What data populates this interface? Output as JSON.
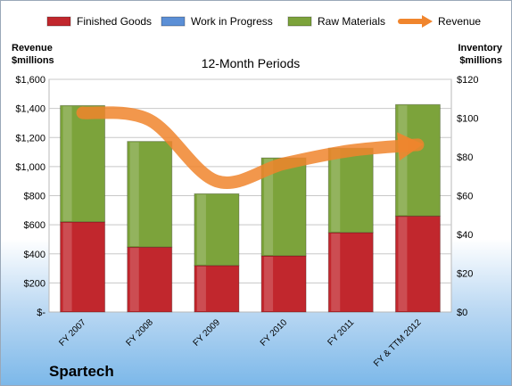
{
  "company": "Spartech",
  "chart_data": {
    "type": "bar",
    "title": "12-Month Periods",
    "categories": [
      "FY 2007",
      "FY 2008",
      "FY 2009",
      "FY 2010",
      "FY 2011",
      "FY & TTM 2012"
    ],
    "series": [
      {
        "name": "Finished Goods",
        "color": "#c1272d",
        "axis": "right",
        "values": [
          46.5,
          33.5,
          24.0,
          29.0,
          41.0,
          49.5
        ]
      },
      {
        "name": "Work in Progress",
        "color": "#5b8fd6",
        "axis": "right",
        "values": [
          0,
          0,
          0,
          0,
          0,
          0
        ]
      },
      {
        "name": "Raw Materials",
        "color": "#7ca33b",
        "axis": "right",
        "values": [
          60.0,
          54.5,
          37.0,
          50.5,
          43.5,
          57.5
        ]
      },
      {
        "name": "Revenue",
        "color": "#f0852d",
        "axis": "left",
        "type": "line",
        "values": [
          1370,
          1320,
          900,
          1020,
          1110,
          1150
        ]
      }
    ],
    "left_axis": {
      "label": "Revenue $millions",
      "ylim": [
        0,
        1600
      ],
      "ticks": [
        "$-",
        "$200",
        "$400",
        "$600",
        "$800",
        "$1,000",
        "$1,200",
        "$1,400",
        "$1,600"
      ]
    },
    "right_axis": {
      "label": "Inventory $millions",
      "ylim": [
        0,
        120
      ],
      "ticks": [
        "$0",
        "$20",
        "$40",
        "$60",
        "$80",
        "$100",
        "$120"
      ]
    },
    "legend": "top",
    "grid": true
  }
}
